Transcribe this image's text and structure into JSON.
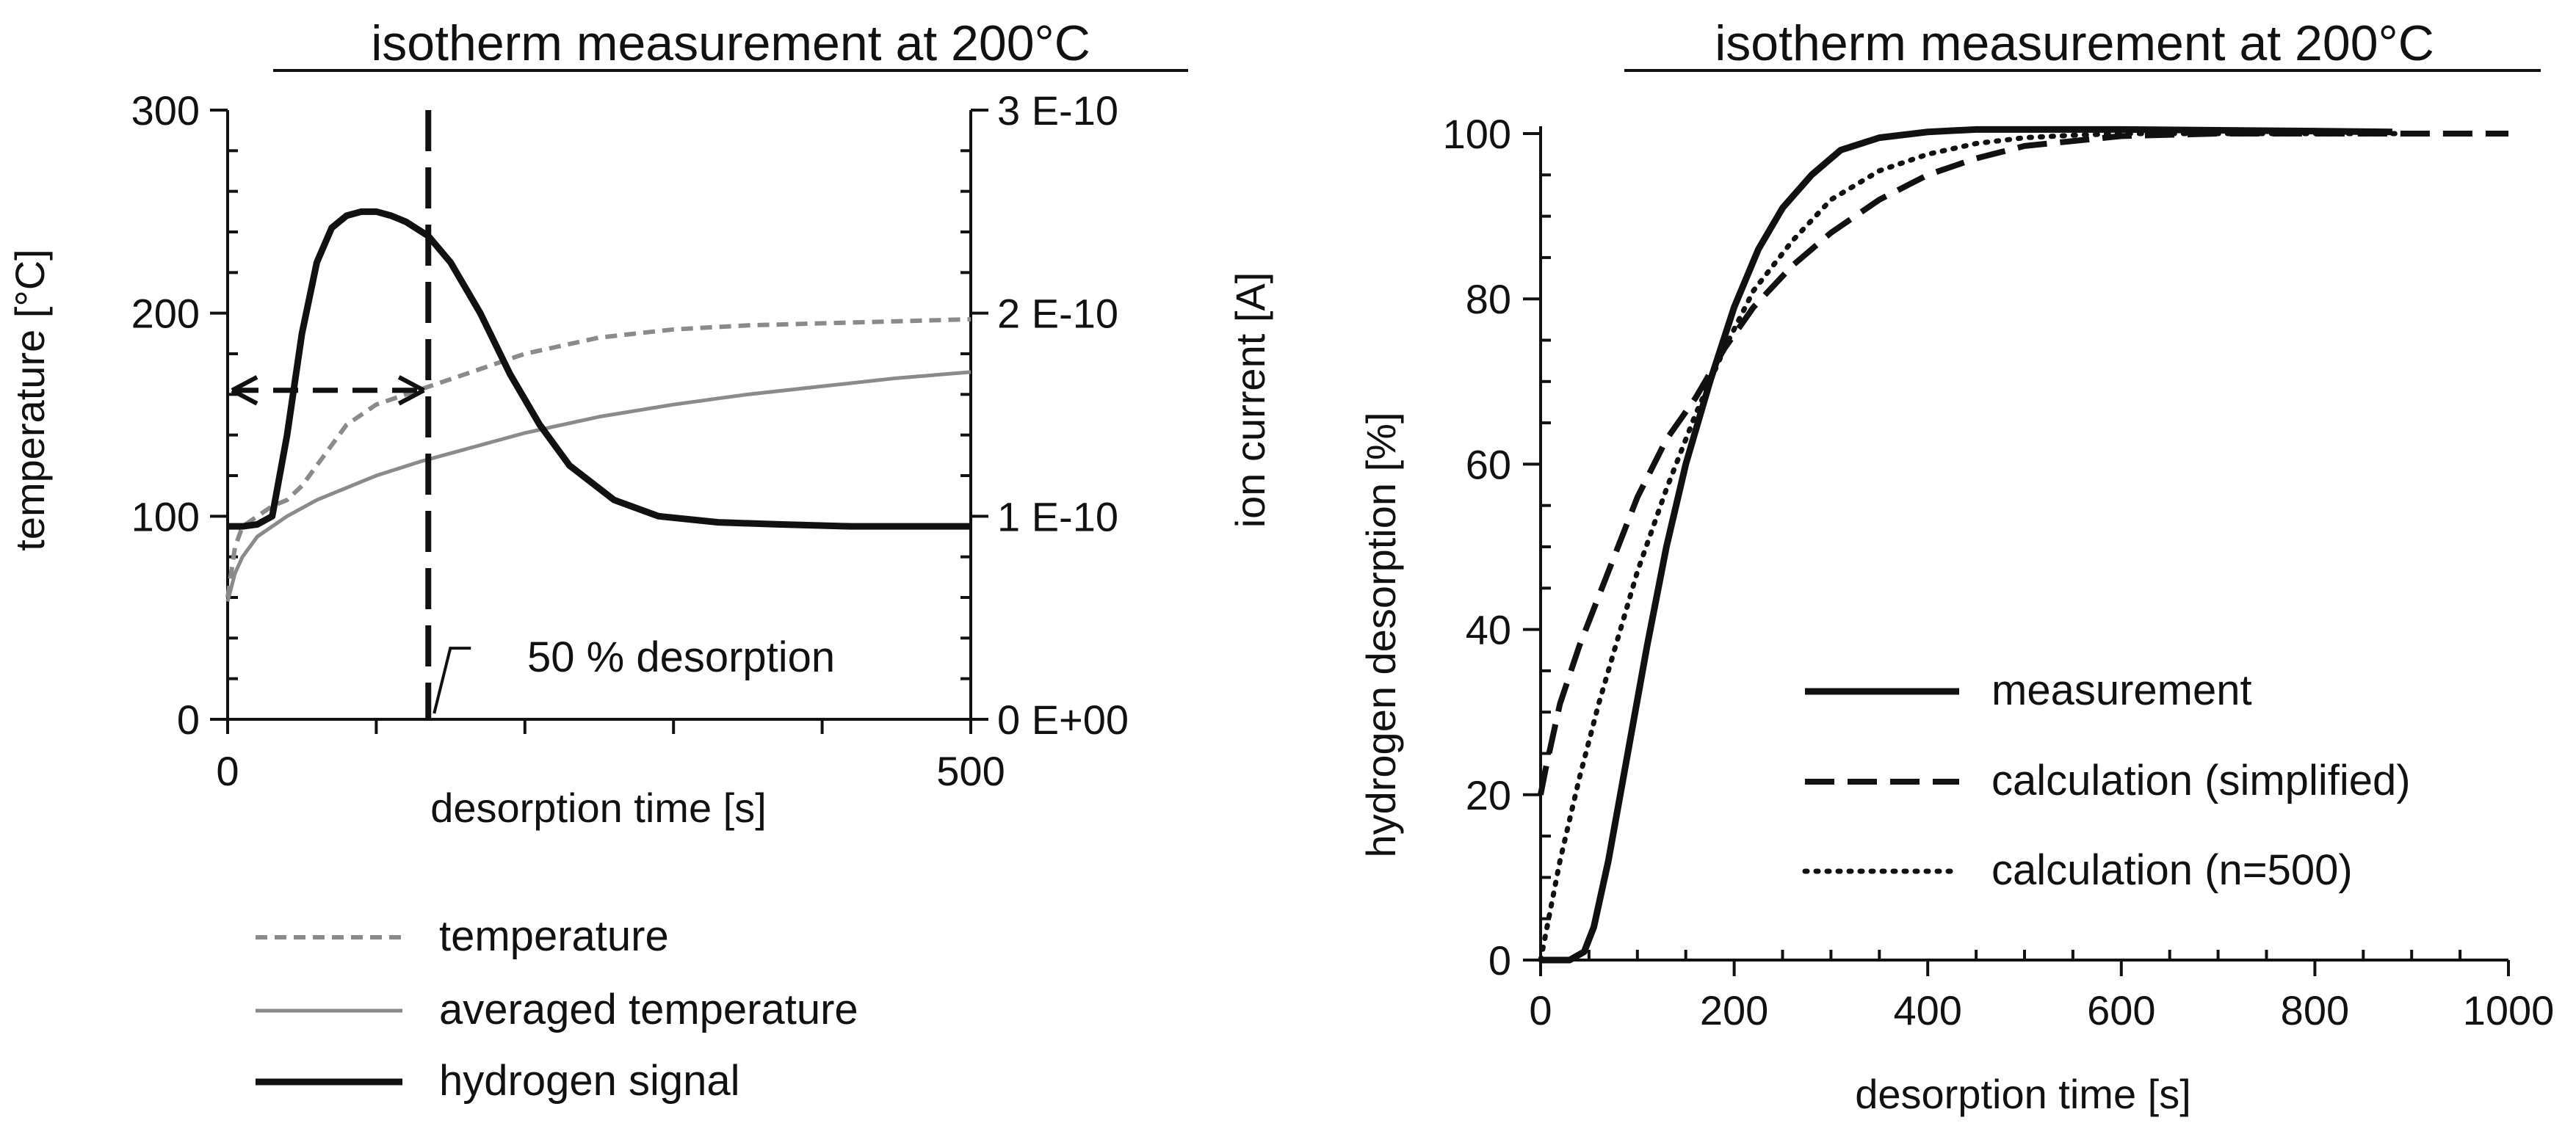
{
  "chart_data": [
    {
      "type": "line",
      "title": "isotherm measurement at 200°C",
      "xlabel": "desorption time [s]",
      "ylabel": "temperature [°C]",
      "y2label": "ion current [A]",
      "xlim": [
        0,
        500
      ],
      "ylim": [
        0,
        300
      ],
      "y2lim": [
        0,
        3e-10
      ],
      "xticks": [
        "0",
        "500"
      ],
      "yticks": [
        "0",
        "100",
        "200",
        "300"
      ],
      "y2ticks": [
        "0 E+00",
        "1 E-10",
        "2 E-10",
        "3 E-10"
      ],
      "annotation": "50 % desorption",
      "marker_x": 135,
      "legend": [
        "temperature",
        "averaged temperature",
        "hydrogen signal"
      ],
      "series": [
        {
          "name": "temperature",
          "axis": "left",
          "style": "dashed-gray",
          "x": [
            0,
            5,
            10,
            20,
            30,
            40,
            50,
            60,
            70,
            80,
            100,
            120,
            140,
            160,
            180,
            200,
            250,
            300,
            350,
            400,
            450,
            500
          ],
          "y": [
            60,
            85,
            95,
            100,
            105,
            108,
            115,
            125,
            135,
            145,
            155,
            160,
            165,
            170,
            175,
            180,
            188,
            192,
            194,
            195,
            196,
            197
          ]
        },
        {
          "name": "averaged temperature",
          "axis": "left",
          "style": "solid-gray",
          "x": [
            0,
            5,
            10,
            20,
            40,
            60,
            80,
            100,
            130,
            160,
            200,
            250,
            300,
            350,
            400,
            450,
            500
          ],
          "y": [
            58,
            72,
            80,
            90,
            100,
            108,
            114,
            120,
            127,
            133,
            141,
            149,
            155,
            160,
            164,
            168,
            171
          ]
        },
        {
          "name": "hydrogen signal",
          "axis": "right",
          "style": "solid-black-thick",
          "x": [
            0,
            10,
            20,
            30,
            40,
            50,
            60,
            70,
            80,
            90,
            100,
            110,
            120,
            135,
            150,
            170,
            190,
            210,
            230,
            260,
            290,
            330,
            370,
            420,
            460,
            500
          ],
          "y": [
            9.5e-11,
            9.5e-11,
            9.6e-11,
            1e-10,
            1.4e-10,
            1.9e-10,
            2.25e-10,
            2.42e-10,
            2.48e-10,
            2.5e-10,
            2.5e-10,
            2.48e-10,
            2.45e-10,
            2.38e-10,
            2.25e-10,
            2e-10,
            1.7e-10,
            1.45e-10,
            1.25e-10,
            1.08e-10,
            1e-10,
            9.7e-11,
            9.6e-11,
            9.5e-11,
            9.5e-11,
            9.5e-11
          ]
        }
      ]
    },
    {
      "type": "line",
      "title": "isotherm measurement at 200°C",
      "xlabel": "desorption time  [s]",
      "ylabel": "hydrogen  desorption  [%]",
      "xlim": [
        0,
        1000
      ],
      "ylim": [
        0,
        100
      ],
      "xticks": [
        "0",
        "200",
        "400",
        "600",
        "800",
        "1000"
      ],
      "yticks": [
        "0",
        "20",
        "40",
        "60",
        "80",
        "100"
      ],
      "legend": [
        "measurement",
        "calculation (simplified)",
        "calculation (n=500)"
      ],
      "series": [
        {
          "name": "measurement",
          "style": "solid",
          "x": [
            0,
            30,
            45,
            55,
            70,
            90,
            110,
            130,
            150,
            175,
            200,
            225,
            250,
            280,
            310,
            350,
            400,
            450,
            500,
            600,
            700,
            800,
            880
          ],
          "y": [
            0,
            0,
            1,
            4,
            12,
            25,
            38,
            50,
            60,
            70,
            79,
            86,
            91,
            95,
            98,
            99.5,
            100.2,
            100.5,
            100.5,
            100.5,
            100.4,
            100.3,
            100.2
          ]
        },
        {
          "name": "calculation (simplified)",
          "style": "dashed",
          "x": [
            0,
            5,
            20,
            40,
            60,
            80,
            100,
            130,
            160,
            190,
            220,
            260,
            300,
            350,
            400,
            450,
            500,
            600,
            700,
            800,
            900,
            1000
          ],
          "y": [
            20,
            23,
            31,
            38,
            44,
            50,
            56,
            63,
            68,
            74,
            79,
            84,
            88,
            92,
            95,
            97,
            98.5,
            99.7,
            100,
            100,
            100,
            100
          ]
        },
        {
          "name": "calculation (n=500)",
          "style": "dotted",
          "x": [
            0,
            10,
            20,
            40,
            60,
            80,
            100,
            130,
            160,
            190,
            220,
            260,
            300,
            350,
            400,
            450,
            500,
            550,
            600,
            700,
            800,
            900
          ],
          "y": [
            0,
            6,
            12,
            22,
            31,
            39,
            47,
            57,
            66,
            74,
            81,
            87,
            92,
            95.5,
            97.5,
            98.8,
            99.5,
            99.8,
            100,
            100,
            100,
            100
          ]
        }
      ]
    }
  ]
}
